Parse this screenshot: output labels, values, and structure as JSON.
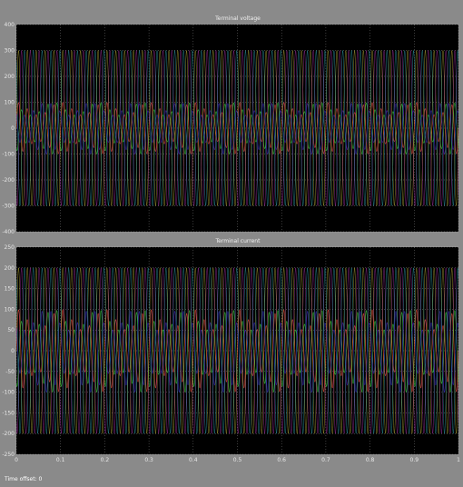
{
  "window": {
    "status_text": "Time offset: 0"
  },
  "colors": {
    "background": "#8a8a8a",
    "plot_area": "#000000",
    "grid": "#c8c8c8",
    "series": [
      "#f2e24a",
      "#d640d6",
      "#3fd3e6",
      "#e6503a",
      "#3ac240",
      "#2a2ab4"
    ]
  },
  "chart_data": [
    {
      "type": "line",
      "title": "Terminal voltage",
      "xlabel": "",
      "ylabel": "",
      "xlim": [
        0,
        1
      ],
      "ylim": [
        -400,
        400
      ],
      "yticks": [
        -400,
        -300,
        -200,
        -100,
        0,
        100,
        200,
        300,
        400
      ],
      "ytick_labels": [
        "-400",
        "-300",
        "-200",
        "-100",
        "0",
        "100",
        "200",
        "300",
        "400"
      ],
      "grid": true,
      "signal": {
        "frequency_hz": 50,
        "phases": 3,
        "outer_amplitude": 300,
        "inner_amplitude": 100,
        "envelope_cycles": 10
      }
    },
    {
      "type": "line",
      "title": "Terminal current",
      "xlabel": "",
      "ylabel": "",
      "xlim": [
        0,
        1
      ],
      "ylim": [
        -250,
        250
      ],
      "xticks": [
        0,
        0.1,
        0.2,
        0.3,
        0.4,
        0.5,
        0.6,
        0.7,
        0.8,
        0.9,
        1
      ],
      "xtick_labels": [
        "0",
        "0.1",
        "0.2",
        "0.3",
        "0.4",
        "0.5",
        "0.6",
        "0.7",
        "0.8",
        "0.9",
        "1"
      ],
      "yticks": [
        -250,
        -200,
        -150,
        -100,
        -50,
        0,
        50,
        100,
        150,
        200,
        250
      ],
      "ytick_labels": [
        "-250",
        "-200",
        "-150",
        "-100",
        "-50",
        "0",
        "50",
        "100",
        "150",
        "200",
        "250"
      ],
      "grid": true,
      "signal": {
        "frequency_hz": 50,
        "phases": 3,
        "outer_amplitude": 200,
        "inner_amplitude": 100,
        "envelope_cycles": 10
      }
    }
  ]
}
